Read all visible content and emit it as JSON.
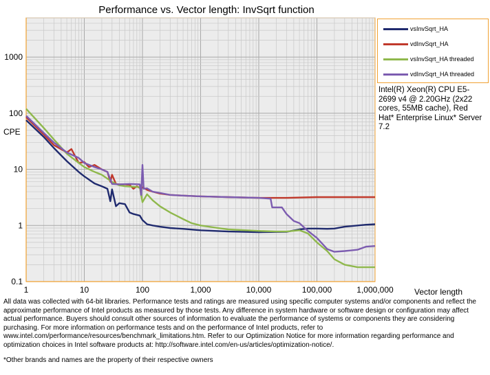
{
  "chart_data": {
    "type": "line",
    "title": "Performance vs. Vector length: InvSqrt function",
    "xlabel": "Vector length",
    "ylabel": "CPE",
    "xscale": "log",
    "yscale": "log",
    "xlim": [
      1,
      1000000
    ],
    "ylim": [
      0.1,
      5000
    ],
    "grid": true,
    "legend_position": "right-top",
    "x_tick_labels": [
      "1",
      "10",
      "100",
      "1,000",
      "10,000",
      "100,000",
      "1,000,000"
    ],
    "x_tick_values": [
      1,
      10,
      100,
      1000,
      10000,
      100000,
      1000000
    ],
    "y_tick_labels": [
      "0.1",
      "1",
      "10",
      "100",
      "1000"
    ],
    "y_tick_values": [
      0.1,
      1,
      10,
      100,
      1000
    ],
    "series": [
      {
        "name": "vsInvSqrt_HA",
        "color": "#1f2a6e",
        "points": [
          [
            1,
            75
          ],
          [
            2,
            38
          ],
          [
            3,
            24
          ],
          [
            5,
            14
          ],
          [
            8,
            9
          ],
          [
            10,
            7.5
          ],
          [
            15,
            5.6
          ],
          [
            20,
            5
          ],
          [
            25,
            4.5
          ],
          [
            28,
            2.7
          ],
          [
            30,
            4.4
          ],
          [
            35,
            2.2
          ],
          [
            40,
            2.5
          ],
          [
            50,
            2.4
          ],
          [
            60,
            1.7
          ],
          [
            70,
            1.6
          ],
          [
            90,
            1.5
          ],
          [
            100,
            1.25
          ],
          [
            120,
            1.05
          ],
          [
            150,
            1.0
          ],
          [
            200,
            0.95
          ],
          [
            300,
            0.9
          ],
          [
            500,
            0.87
          ],
          [
            1000,
            0.82
          ],
          [
            3000,
            0.78
          ],
          [
            10000,
            0.76
          ],
          [
            30000,
            0.77
          ],
          [
            50000,
            0.85
          ],
          [
            70000,
            0.88
          ],
          [
            100000,
            0.88
          ],
          [
            150000,
            0.87
          ],
          [
            200000,
            0.88
          ],
          [
            300000,
            0.95
          ],
          [
            500000,
            1.0
          ],
          [
            700000,
            1.03
          ],
          [
            1000000,
            1.05
          ]
        ]
      },
      {
        "name": "vdInvSqrt_HA",
        "color": "#c0392b",
        "points": [
          [
            1,
            85
          ],
          [
            2,
            42
          ],
          [
            3,
            27
          ],
          [
            5,
            20
          ],
          [
            6,
            23
          ],
          [
            8,
            13
          ],
          [
            10,
            13.5
          ],
          [
            12,
            11
          ],
          [
            15,
            12
          ],
          [
            20,
            10
          ],
          [
            25,
            9
          ],
          [
            28,
            6
          ],
          [
            30,
            8
          ],
          [
            35,
            5.5
          ],
          [
            40,
            5.4
          ],
          [
            50,
            5.4
          ],
          [
            60,
            5.3
          ],
          [
            70,
            4.5
          ],
          [
            80,
            5.0
          ],
          [
            95,
            4.5
          ],
          [
            100,
            4.8
          ],
          [
            120,
            4.3
          ],
          [
            150,
            4.0
          ],
          [
            200,
            3.7
          ],
          [
            300,
            3.5
          ],
          [
            500,
            3.4
          ],
          [
            1000,
            3.3
          ],
          [
            3000,
            3.2
          ],
          [
            10000,
            3.1
          ],
          [
            30000,
            3.1
          ],
          [
            100000,
            3.2
          ],
          [
            300000,
            3.2
          ],
          [
            1000000,
            3.2
          ]
        ]
      },
      {
        "name": "vsInvSqrt_HA threaded",
        "color": "#8fb84c",
        "points": [
          [
            1,
            120
          ],
          [
            2,
            55
          ],
          [
            3,
            34
          ],
          [
            5,
            19
          ],
          [
            8,
            13
          ],
          [
            10,
            11
          ],
          [
            15,
            9
          ],
          [
            20,
            8
          ],
          [
            30,
            6
          ],
          [
            35,
            5.5
          ],
          [
            40,
            5.2
          ],
          [
            50,
            5.0
          ],
          [
            70,
            4.9
          ],
          [
            90,
            4.8
          ],
          [
            100,
            2.6
          ],
          [
            120,
            3.6
          ],
          [
            150,
            2.8
          ],
          [
            200,
            2.2
          ],
          [
            300,
            1.7
          ],
          [
            500,
            1.3
          ],
          [
            700,
            1.1
          ],
          [
            1000,
            1.0
          ],
          [
            2000,
            0.9
          ],
          [
            3000,
            0.85
          ],
          [
            10000,
            0.8
          ],
          [
            20000,
            0.78
          ],
          [
            30000,
            0.78
          ],
          [
            50000,
            0.82
          ],
          [
            70000,
            0.72
          ],
          [
            100000,
            0.5
          ],
          [
            150000,
            0.35
          ],
          [
            200000,
            0.25
          ],
          [
            300000,
            0.2
          ],
          [
            500000,
            0.18
          ],
          [
            1000000,
            0.18
          ]
        ]
      },
      {
        "name": "vdInvSqrt_HA threaded",
        "color": "#7c5cb0",
        "points": [
          [
            1,
            90
          ],
          [
            2,
            45
          ],
          [
            3,
            30
          ],
          [
            5,
            20
          ],
          [
            8,
            16
          ],
          [
            10,
            13
          ],
          [
            15,
            11
          ],
          [
            20,
            10
          ],
          [
            25,
            9
          ],
          [
            30,
            5.5
          ],
          [
            40,
            5.4
          ],
          [
            60,
            5.5
          ],
          [
            90,
            5.4
          ],
          [
            95,
            3.5
          ],
          [
            100,
            12
          ],
          [
            105,
            4.5
          ],
          [
            120,
            4.6
          ],
          [
            150,
            4.0
          ],
          [
            200,
            3.8
          ],
          [
            300,
            3.5
          ],
          [
            500,
            3.4
          ],
          [
            1000,
            3.3
          ],
          [
            3000,
            3.2
          ],
          [
            10000,
            3.1
          ],
          [
            16000,
            3.0
          ],
          [
            17000,
            2.1
          ],
          [
            25000,
            2.1
          ],
          [
            30000,
            1.6
          ],
          [
            40000,
            1.2
          ],
          [
            50000,
            1.1
          ],
          [
            70000,
            0.8
          ],
          [
            100000,
            0.6
          ],
          [
            150000,
            0.38
          ],
          [
            200000,
            0.34
          ],
          [
            300000,
            0.35
          ],
          [
            500000,
            0.37
          ],
          [
            700000,
            0.42
          ],
          [
            1000000,
            0.43
          ]
        ]
      }
    ]
  },
  "note": "Intel(R) Xeon(R) CPU E5-2699 v4 @ 2.20GHz (2x22 cores, 55MB cache), Red Hat* Enterprise Linux* Server 7.2",
  "disclaimer": "All data was collected with 64-bit libraries. Performance tests and ratings are measured using specific computer systems and/or components and reflect the approximate performance of Intel products as measured by those tests. Any difference in system hardware or software design or configuration may affect actual performance. Buyers should consult other sources of information to evaluate the performance of systems or components they are considering purchasing. For more information on performance tests and on the performance of Intel products, refer to www.intel.com/performance/resources/benchmark_limitations.htm. Refer to our Optimization Notice for more information regarding performance and optimization choices in Intel software products at: http://software.intel.com/en-us/articles/optimization-notice/.",
  "trademark": "*Other brands and names are the property of their respective owners"
}
